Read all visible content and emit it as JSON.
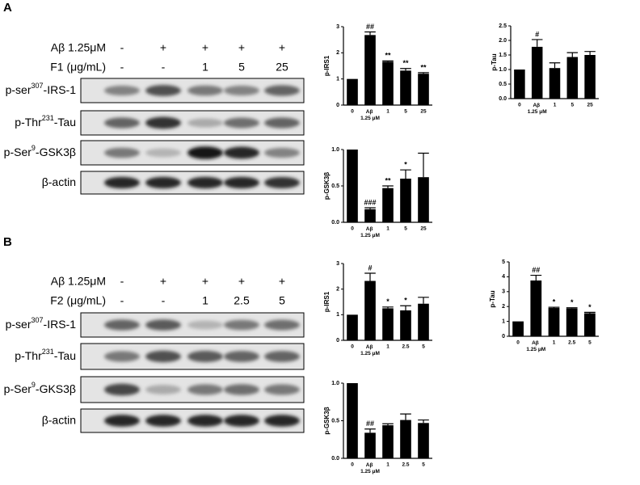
{
  "panel_labels": [
    "A",
    "B"
  ],
  "blots": [
    {
      "conditions": [
        {
          "label": "Aβ 1.25μM",
          "values": [
            "-",
            "+",
            "+",
            "+",
            "+"
          ]
        },
        {
          "label": "F1 (μg/mL)",
          "values": [
            "-",
            "-",
            "1",
            "5",
            "25"
          ]
        }
      ],
      "bands": [
        {
          "prefix": "p-ser",
          "sup": "307",
          "suffix": "-IRS-1"
        },
        {
          "prefix": "p-Thr",
          "sup": "231",
          "suffix": "-Tau"
        },
        {
          "prefix": "p-Ser",
          "sup": "9",
          "suffix": "-GSK3β"
        },
        {
          "prefix": "β-actin"
        }
      ]
    },
    {
      "conditions": [
        {
          "label": "Aβ 1.25μM",
          "values": [
            "-",
            "+",
            "+",
            "+",
            "+"
          ]
        },
        {
          "label": "F2 (μg/mL)",
          "values": [
            "-",
            "-",
            "1",
            "2.5",
            "5"
          ]
        }
      ],
      "bands": [
        {
          "prefix": "p-ser",
          "sup": "307",
          "suffix": "-IRS-1"
        },
        {
          "prefix": "p-Thr",
          "sup": "231",
          "suffix": "-Tau"
        },
        {
          "prefix": "p-Ser",
          "sup": "9",
          "suffix": "-GKS3β"
        },
        {
          "prefix": "β-actin"
        }
      ]
    }
  ],
  "chart_data": [
    {
      "type": "bar",
      "y_label": "p-IRS1",
      "color": "#000000",
      "categories": [
        "0",
        "Aβ 1.25 μM",
        "1",
        "5",
        "25"
      ],
      "values": [
        1,
        2.68,
        1.66,
        1.32,
        1.2
      ],
      "errors": [
        0,
        0.12,
        0.03,
        0.08,
        0.04
      ],
      "annotations": [
        null,
        "##",
        "**",
        "**",
        "**"
      ],
      "ylim": [
        0,
        3
      ],
      "yticks": [
        0,
        1,
        2,
        3
      ]
    },
    {
      "type": "bar",
      "y_label": "p-Tau",
      "color": "#000000",
      "categories": [
        "0",
        "Aβ 1.25 μM",
        "1",
        "5",
        "25"
      ],
      "values": [
        1,
        1.78,
        1.05,
        1.43,
        1.5
      ],
      "errors": [
        0,
        0.25,
        0.18,
        0.15,
        0.12
      ],
      "annotations": [
        null,
        "#",
        null,
        null,
        null
      ],
      "ylim": [
        0,
        2.5
      ],
      "yticks": [
        {
          "value": 0,
          "label": "0.0"
        },
        {
          "value": 0.5,
          "label": "0.5"
        },
        {
          "value": 1,
          "label": "1.0"
        },
        {
          "value": 1.5,
          "label": "1.5"
        },
        {
          "value": 2,
          "label": "2.0"
        },
        {
          "value": 2.5,
          "label": "2.5"
        }
      ]
    },
    {
      "type": "bar",
      "y_label": "p-GSK3β",
      "color": "#000000",
      "categories": [
        "0",
        "Aβ 1.25 μM",
        "1",
        "5",
        "25"
      ],
      "values": [
        1,
        0.18,
        0.47,
        0.6,
        0.62
      ],
      "errors": [
        0,
        0.02,
        0.03,
        0.12,
        0.33
      ],
      "annotations": [
        null,
        "###",
        "**",
        "*",
        null
      ],
      "ylim": [
        0,
        1
      ],
      "yticks": [
        {
          "value": 0,
          "label": "0.0"
        },
        {
          "value": 0.5,
          "label": "0.5"
        },
        {
          "value": 1,
          "label": "1.0"
        }
      ]
    },
    {
      "type": "bar",
      "y_label": "p-IRS1",
      "color": "#000000",
      "categories": [
        "0",
        "Aβ 1.25 μM",
        "1",
        "2.5",
        "5"
      ],
      "values": [
        1,
        2.32,
        1.25,
        1.17,
        1.43
      ],
      "errors": [
        0,
        0.3,
        0.05,
        0.18,
        0.25
      ],
      "annotations": [
        null,
        "#",
        "*",
        "*",
        null
      ],
      "ylim": [
        0,
        3
      ],
      "yticks": [
        0,
        1,
        2,
        3
      ]
    },
    {
      "type": "bar",
      "y_label": "p-Tau",
      "color": "#000000",
      "categories": [
        "0",
        "Aβ 1.25 μM",
        "1",
        "2.5",
        "5"
      ],
      "values": [
        1,
        3.75,
        1.9,
        1.88,
        1.55
      ],
      "errors": [
        0,
        0.35,
        0.05,
        0.04,
        0.06
      ],
      "annotations": [
        null,
        "##",
        "*",
        "*",
        "*"
      ],
      "ylim": [
        0,
        5
      ],
      "yticks": [
        0,
        1,
        2,
        3,
        4,
        5
      ]
    },
    {
      "type": "bar",
      "y_label": "p-GSK3β",
      "color": "#000000",
      "categories": [
        "0",
        "Aβ 1.25 μM",
        "1",
        "2.5",
        "5"
      ],
      "values": [
        1,
        0.34,
        0.44,
        0.51,
        0.47
      ],
      "errors": [
        0,
        0.05,
        0.02,
        0.08,
        0.04
      ],
      "annotations": [
        null,
        "##",
        null,
        null,
        null
      ],
      "ylim": [
        0,
        1
      ],
      "yticks": [
        {
          "value": 0,
          "label": "0.0"
        },
        {
          "value": 0.5,
          "label": "0.5"
        },
        {
          "value": 1,
          "label": "1.0"
        }
      ]
    }
  ]
}
